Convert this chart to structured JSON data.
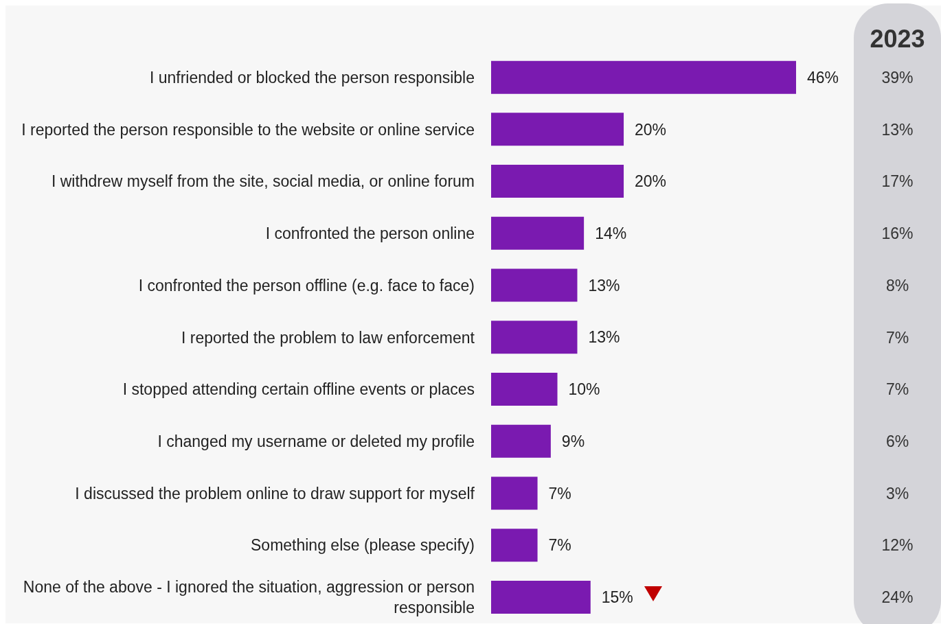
{
  "chart_data": {
    "type": "bar",
    "orientation": "horizontal",
    "categories": [
      "I unfriended or blocked the person responsible",
      "I reported the person responsible to the website or online service",
      "I withdrew myself from the site, social media, or online forum",
      "I confronted the person online",
      "I confronted the person offline (e.g. face to face)",
      "I reported the problem to law enforcement",
      "I stopped attending certain offline events or places",
      "I changed my username or deleted my profile",
      "I discussed the problem online to draw support for myself",
      "Something else (please specify)",
      "None of the above - I ignored the situation, aggression or person responsible"
    ],
    "values": [
      46,
      20,
      20,
      14,
      13,
      13,
      10,
      9,
      7,
      7,
      15
    ],
    "value_labels": [
      "46%",
      "20%",
      "20%",
      "14%",
      "13%",
      "13%",
      "10%",
      "9%",
      "7%",
      "7%",
      "15%"
    ],
    "color": "#7a1ab0",
    "annotations": [
      "2023",
      "39%",
      "13%",
      "17%",
      "16%",
      "8%",
      "7%",
      "7%",
      "6%",
      "3%",
      "12%",
      "24%"
    ]
  }
}
